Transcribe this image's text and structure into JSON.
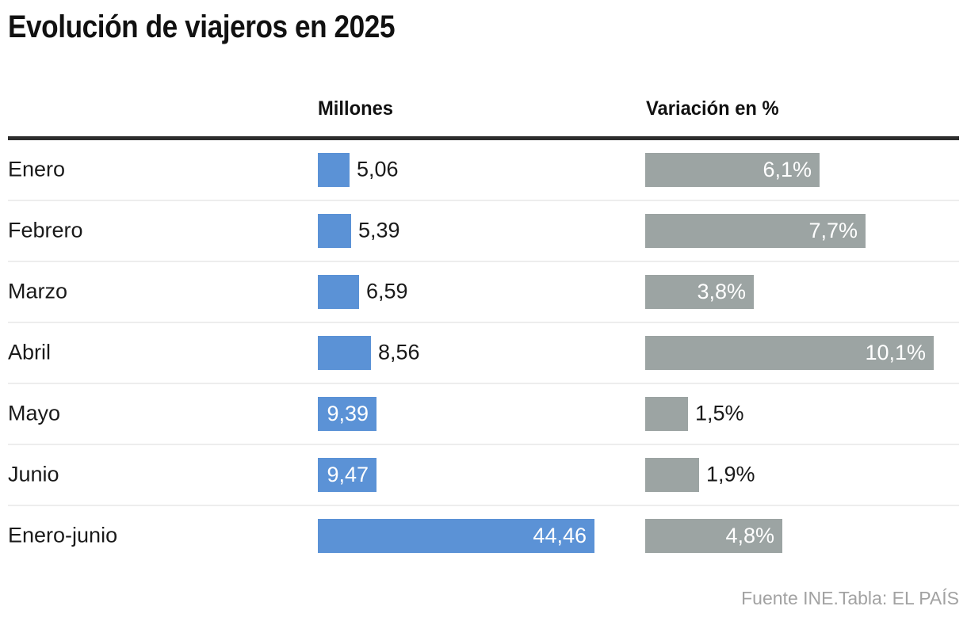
{
  "title": "Evolución de viajeros en 2025",
  "columns": {
    "millions_label": "Millones",
    "variation_label": "Variación en %"
  },
  "rows": [
    {
      "label": "Enero",
      "millions_text": "5,06",
      "millions_value": 5.06,
      "variation_text": "6,1%",
      "variation_value": 6.1
    },
    {
      "label": "Febrero",
      "millions_text": "5,39",
      "millions_value": 5.39,
      "variation_text": "7,7%",
      "variation_value": 7.7
    },
    {
      "label": "Marzo",
      "millions_text": "6,59",
      "millions_value": 6.59,
      "variation_text": "3,8%",
      "variation_value": 3.8
    },
    {
      "label": "Abril",
      "millions_text": "8,56",
      "millions_value": 8.56,
      "variation_text": "10,1%",
      "variation_value": 10.1
    },
    {
      "label": "Mayo",
      "millions_text": "9,39",
      "millions_value": 9.39,
      "variation_text": "1,5%",
      "variation_value": 1.5
    },
    {
      "label": "Junio",
      "millions_text": "9,47",
      "millions_value": 9.47,
      "variation_text": "1,9%",
      "variation_value": 1.9
    },
    {
      "label": "Enero-junio",
      "millions_text": "44,46",
      "millions_value": 44.46,
      "variation_text": "4,8%",
      "variation_value": 4.8
    }
  ],
  "footer": "Fuente INE.Tabla: EL PAÍS",
  "colors": {
    "bar_blue": "#5b92d6",
    "bar_gray": "#9ca4a3",
    "rule_dark": "#2d2d2d",
    "separator": "#ededed",
    "text_dark": "#1a1a1a",
    "text_light": "#ffffff",
    "footer_gray": "#a2a2a2"
  },
  "chart_data": {
    "type": "bar",
    "orientation": "horizontal",
    "title": "Evolución de viajeros en 2025",
    "categories": [
      "Enero",
      "Febrero",
      "Marzo",
      "Abril",
      "Mayo",
      "Junio",
      "Enero-junio"
    ],
    "series": [
      {
        "name": "Millones",
        "values": [
          5.06,
          5.39,
          6.59,
          8.56,
          9.39,
          9.47,
          44.46
        ]
      },
      {
        "name": "Variación en %",
        "values": [
          6.1,
          7.7,
          3.8,
          10.1,
          1.5,
          1.9,
          4.8
        ]
      }
    ],
    "value_labels": true,
    "grid": false,
    "legend_position": "column-headers",
    "source": "Fuente INE.Tabla: EL PAÍS"
  }
}
